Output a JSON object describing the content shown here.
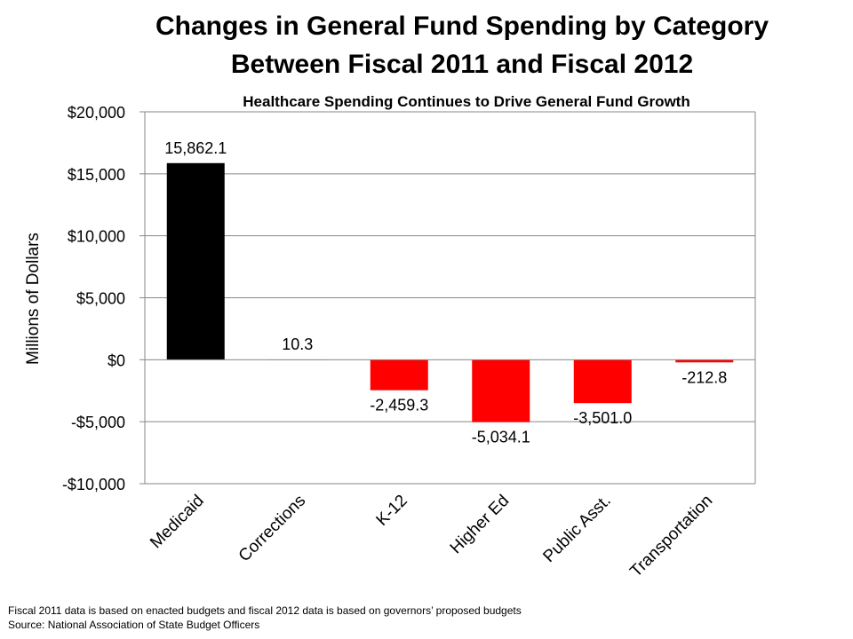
{
  "chart_data": {
    "type": "bar",
    "title_line1": "Changes in General Fund Spending by Category",
    "title_line2": "Between Fiscal 2011 and Fiscal 2012",
    "subtitle": "Healthcare Spending Continues to Drive General Fund Growth",
    "xlabel": "",
    "ylabel": "Millions of Dollars",
    "ylim": [
      -10000,
      20000
    ],
    "yticks": [
      20000,
      15000,
      10000,
      5000,
      0,
      -5000,
      -10000
    ],
    "ytick_labels": [
      "$20,000",
      "$15,000",
      "$10,000",
      "$5,000",
      "$0",
      "-$5,000",
      "-$10,000"
    ],
    "categories": [
      "Medicaid",
      "Corrections",
      "K-12",
      "Higher Ed",
      "Public Asst.",
      "Transportation"
    ],
    "values": [
      15862.1,
      10.3,
      -2459.3,
      -5034.1,
      -3501.0,
      -212.8
    ],
    "value_labels": [
      "15,862.1",
      "10.3",
      "-2,459.3",
      "-5,034.1",
      "-3,501.0",
      "-212.8"
    ],
    "bar_colors": [
      "#000000",
      "#ff0000",
      "#ff0000",
      "#ff0000",
      "#ff0000",
      "#ff0000"
    ],
    "grid": true,
    "legend": "none"
  },
  "footnotes": {
    "line1": "Fiscal 2011 data is based on enacted budgets and fiscal 2012 data is based on governors’ proposed budgets",
    "line2": "Source: National Association of State Budget Officers"
  }
}
